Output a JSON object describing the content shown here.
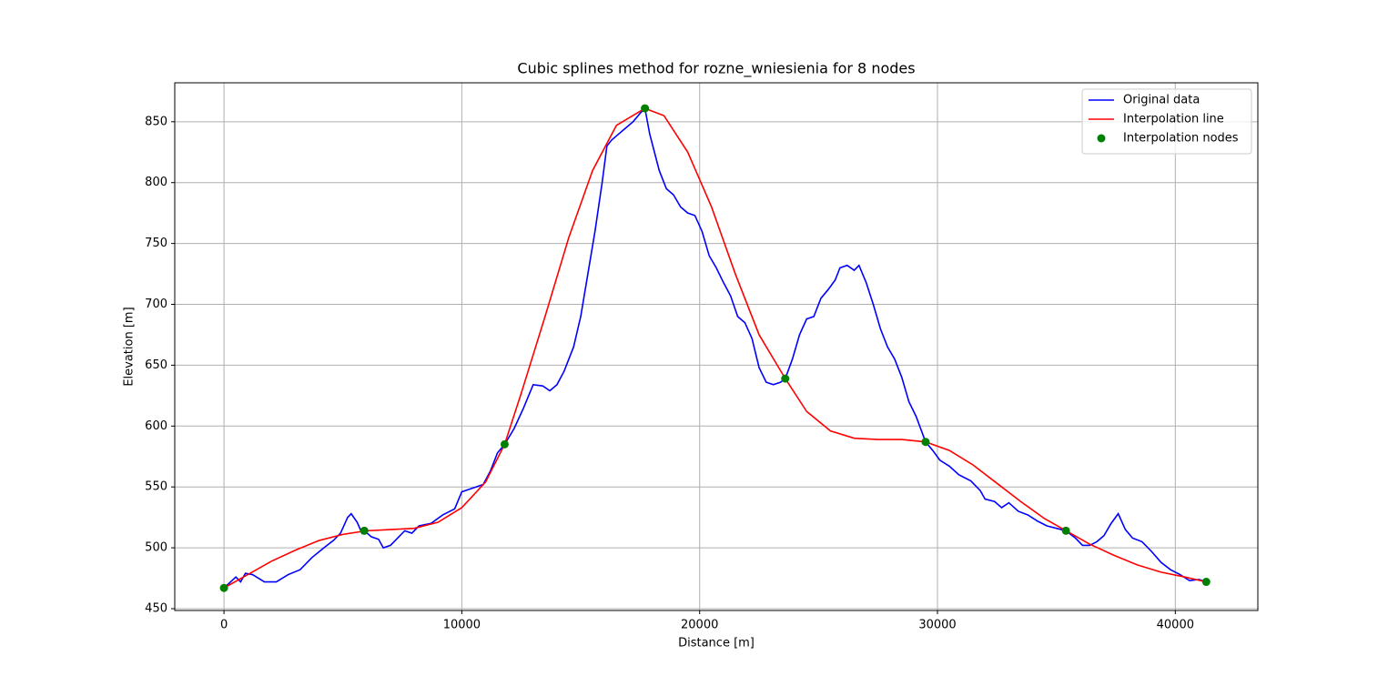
{
  "chart_data": {
    "type": "line",
    "title": "Cubic splines method for rozne_wniesienia for 8 nodes",
    "xlabel": "Distance [m]",
    "ylabel": "Elevation [m]",
    "xlim": [
      -2070,
      43470
    ],
    "ylim": [
      448.5,
      882
    ],
    "xticks": [
      0,
      10000,
      20000,
      30000,
      40000
    ],
    "yticks": [
      450,
      500,
      550,
      600,
      650,
      700,
      750,
      800,
      850
    ],
    "grid": true,
    "legend": "upper right",
    "series": [
      {
        "name": "Original data",
        "color": "#0000ff",
        "mark": "line",
        "x": [
          0,
          500,
          700,
          900,
          1200,
          1700,
          2200,
          2700,
          3200,
          3700,
          4200,
          4600,
          4900,
          5200,
          5350,
          5600,
          5800,
          5900,
          6200,
          6500,
          6700,
          7000,
          7300,
          7600,
          7900,
          8200,
          8700,
          9200,
          9700,
          10000,
          10300,
          10600,
          10900,
          11200,
          11500,
          11800,
          12200,
          12600,
          13000,
          13400,
          13700,
          14000,
          14300,
          14700,
          15000,
          15300,
          15600,
          15900,
          16100,
          16300,
          16600,
          16900,
          17200,
          17500,
          17700,
          17900,
          18300,
          18600,
          18900,
          19200,
          19500,
          19800,
          20100,
          20400,
          20700,
          21000,
          21300,
          21600,
          21900,
          22200,
          22500,
          22800,
          23100,
          23400,
          23600,
          23900,
          24200,
          24500,
          24800,
          25100,
          25400,
          25700,
          25900,
          26200,
          26500,
          26700,
          27000,
          27300,
          27600,
          27900,
          28200,
          28500,
          28800,
          29100,
          29500,
          29800,
          30100,
          30500,
          30900,
          31400,
          31800,
          32000,
          32400,
          32700,
          33000,
          33400,
          33800,
          34200,
          34600,
          35000,
          35400,
          35800,
          36100,
          36400,
          36700,
          37000,
          37300,
          37600,
          37900,
          38200,
          38600,
          39000,
          39400,
          39800,
          40200,
          40600,
          41000,
          41300
        ],
        "values": [
          467,
          476,
          472,
          479,
          478,
          472,
          472,
          478,
          482,
          492,
          500,
          506,
          512,
          525,
          528,
          521,
          512,
          514,
          509,
          507,
          500,
          502,
          508,
          514,
          512,
          518,
          520,
          527,
          532,
          546,
          548,
          550,
          552,
          563,
          578,
          585,
          598,
          615,
          634,
          633,
          629,
          634,
          645,
          665,
          690,
          725,
          760,
          800,
          830,
          835,
          840,
          845,
          850,
          857,
          861,
          840,
          810,
          795,
          790,
          780,
          775,
          773,
          760,
          740,
          730,
          718,
          707,
          690,
          685,
          672,
          648,
          636,
          634,
          636,
          639,
          655,
          675,
          688,
          690,
          705,
          712,
          720,
          730,
          732,
          728,
          732,
          718,
          700,
          680,
          665,
          655,
          640,
          620,
          608,
          587,
          580,
          572,
          567,
          560,
          555,
          547,
          540,
          538,
          533,
          537,
          530,
          527,
          522,
          518,
          516,
          514,
          508,
          502,
          502,
          505,
          510,
          520,
          528,
          515,
          508,
          505,
          497,
          488,
          482,
          478,
          473,
          474,
          472
        ]
      },
      {
        "name": "Interpolation line",
        "color": "#ff0000",
        "mark": "line",
        "x": [
          0,
          1000,
          2000,
          3000,
          4000,
          5000,
          6000,
          7000,
          8000,
          9000,
          10000,
          11000,
          11800,
          12500,
          13500,
          14500,
          15500,
          16500,
          17700,
          18500,
          19500,
          20500,
          21500,
          22500,
          23600,
          24500,
          25500,
          26500,
          27500,
          28500,
          29500,
          30500,
          31500,
          32500,
          33500,
          34500,
          35400,
          36400,
          37400,
          38400,
          39400,
          40400,
          41300
        ],
        "values": [
          467,
          478,
          489,
          498,
          506,
          511,
          514,
          515,
          516,
          521,
          533,
          554,
          585,
          627,
          690,
          755,
          810,
          847,
          861,
          855,
          825,
          780,
          725,
          675,
          639,
          612,
          596,
          590,
          589,
          589,
          587,
          580,
          568,
          553,
          538,
          524,
          514,
          503,
          494,
          486,
          480,
          476,
          472
        ]
      },
      {
        "name": "Interpolation nodes",
        "color": "#008000",
        "mark": "point",
        "x": [
          0,
          5900,
          11800,
          17700,
          23600,
          29500,
          35400,
          41300
        ],
        "values": [
          467,
          514,
          585,
          861,
          639,
          587,
          514,
          472
        ]
      }
    ]
  }
}
